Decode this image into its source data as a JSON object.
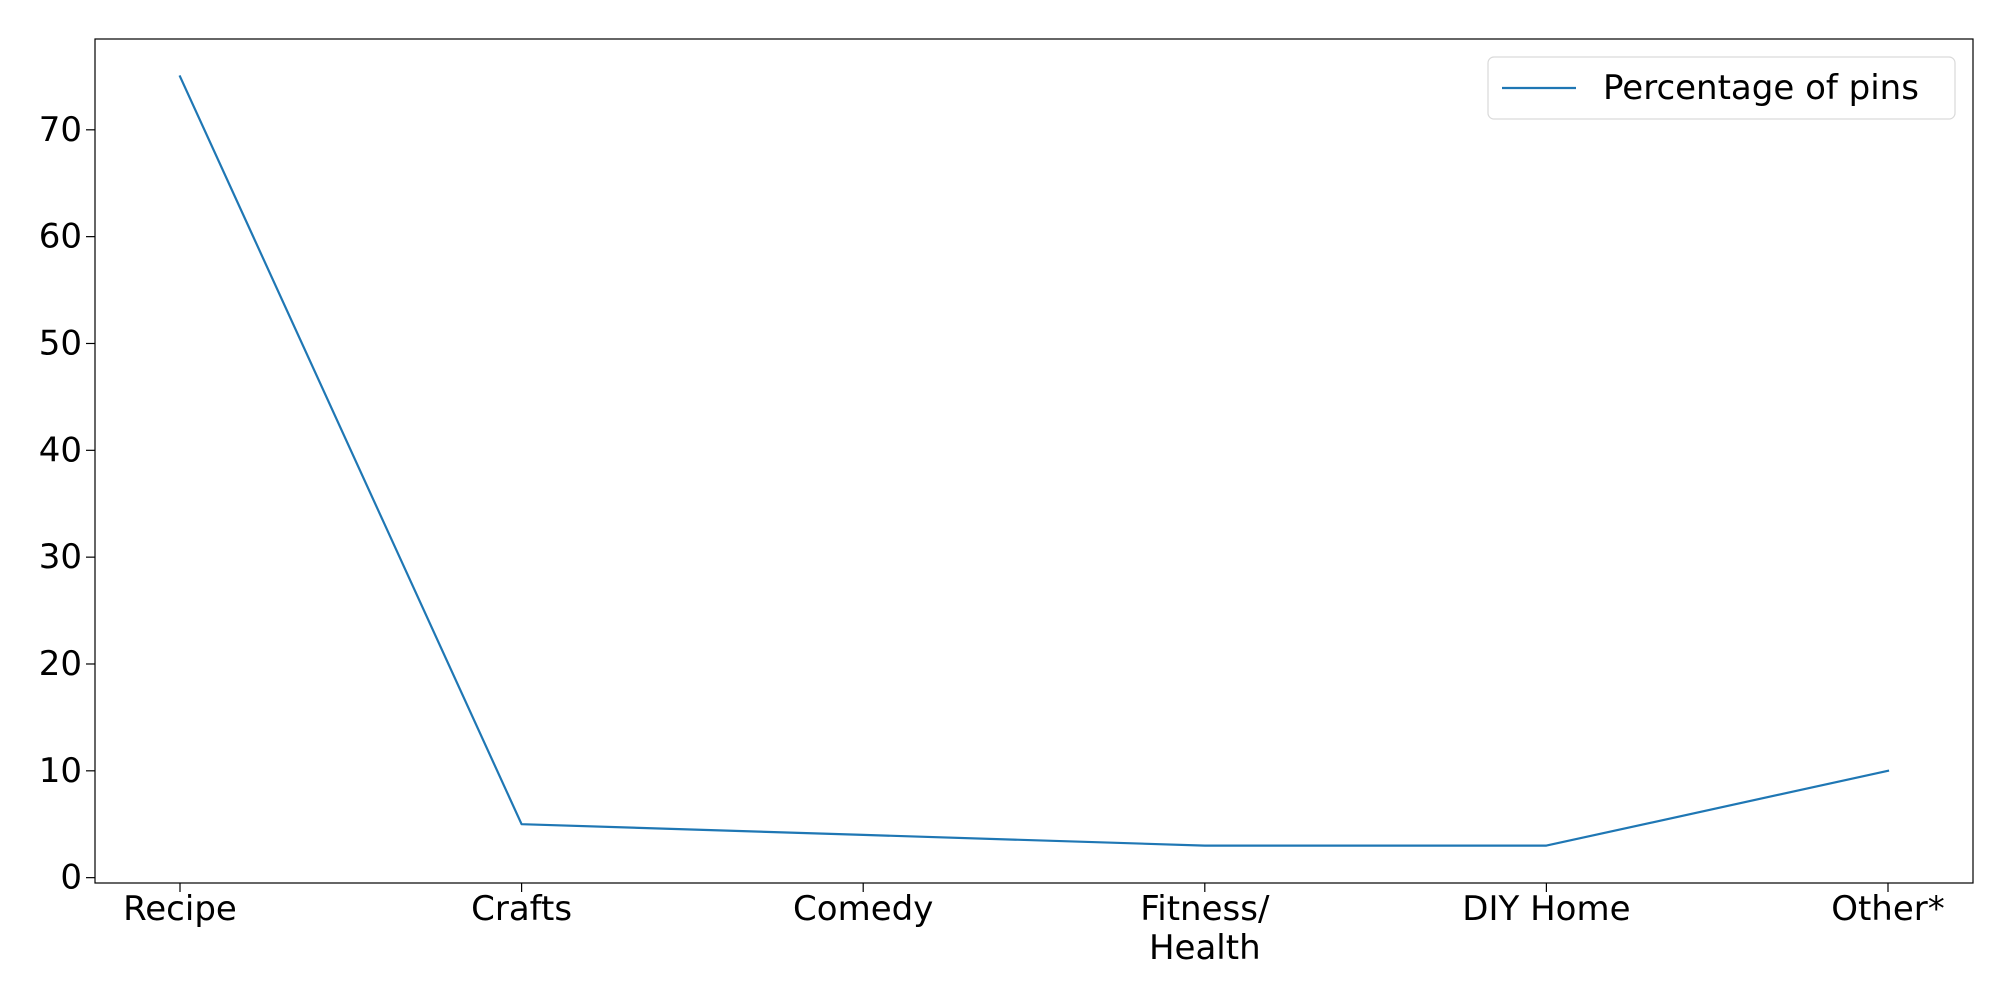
{
  "chart_data": {
    "type": "line",
    "categories": [
      [
        "Recipe"
      ],
      [
        "Crafts"
      ],
      [
        "Comedy"
      ],
      [
        "Fitness/",
        "Health"
      ],
      [
        "DIY Home"
      ],
      [
        "Other*"
      ]
    ],
    "series": [
      {
        "name": "Percentage of pins",
        "values": [
          75,
          5,
          4,
          3,
          3,
          10
        ],
        "color": "#1f77b4"
      }
    ],
    "yticks": [
      0,
      10,
      20,
      30,
      40,
      50,
      60,
      70
    ],
    "ylim": [
      -0.5,
      78.5
    ],
    "grid": false,
    "legend_position": "upper right"
  }
}
